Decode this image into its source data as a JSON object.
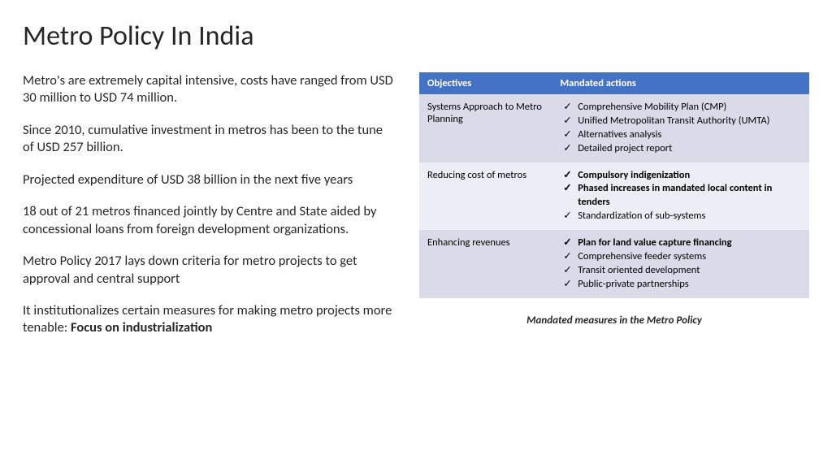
{
  "title": "Metro Policy In India",
  "paragraphs": [
    {
      "text": "Metro's are extremely capital intensive, costs have ranged from USD 30 million to USD 74 million."
    },
    {
      "text": "Since 2010, cumulative investment in metros has been to the tune of USD 257 billion."
    },
    {
      "text": "Projected expenditure of USD 38 billion in the next five years"
    },
    {
      "text": "18 out of 21 metros financed jointly by Centre and State aided by concessional loans from foreign development organizations."
    },
    {
      "text": "Metro Policy 2017 lays down criteria for metro projects to get approval and central support"
    },
    {
      "prefix": "It institutionalizes certain measures for making metro projects more tenable: ",
      "bold": "Focus on industrialization"
    }
  ],
  "table": {
    "header": {
      "objectives": "Objectives",
      "actions": "Mandated actions",
      "bg": "#4472c4",
      "fg": "#ffffff"
    },
    "rows": [
      {
        "objective": "Systems Approach to Metro Planning",
        "bg": "#d9dce8",
        "items": [
          {
            "text": "Comprehensive Mobility Plan (CMP)",
            "bold": false
          },
          {
            "text": "Unified Metropolitan Transit Authority (UMTA)",
            "bold": false
          },
          {
            "text": "Alternatives analysis",
            "bold": false
          },
          {
            "text": "Detailed project report",
            "bold": false
          }
        ]
      },
      {
        "objective": "Reducing cost of metros",
        "bg": "#eceef6",
        "items": [
          {
            "text": "Compulsory indigenization",
            "bold": true
          },
          {
            "text": "Phased increases in mandated local content in tenders",
            "bold": true
          },
          {
            "text": "Standardization of sub-systems",
            "bold": false
          }
        ]
      },
      {
        "objective": "Enhancing revenues",
        "bg": "#d9dce8",
        "items": [
          {
            "text": "Plan for land value capture financing",
            "bold": true
          },
          {
            "text": "Comprehensive feeder systems",
            "bold": false
          },
          {
            "text": "Transit oriented development",
            "bold": false
          },
          {
            "text": "Public-private partnerships",
            "bold": false
          }
        ]
      }
    ]
  },
  "caption": "Mandated measures in the Metro Policy",
  "colors": {
    "header_bg": "#4472c4",
    "header_fg": "#ffffff",
    "row_alt1": "#d9dce8",
    "row_alt2": "#eceef6",
    "text": "#262626"
  }
}
